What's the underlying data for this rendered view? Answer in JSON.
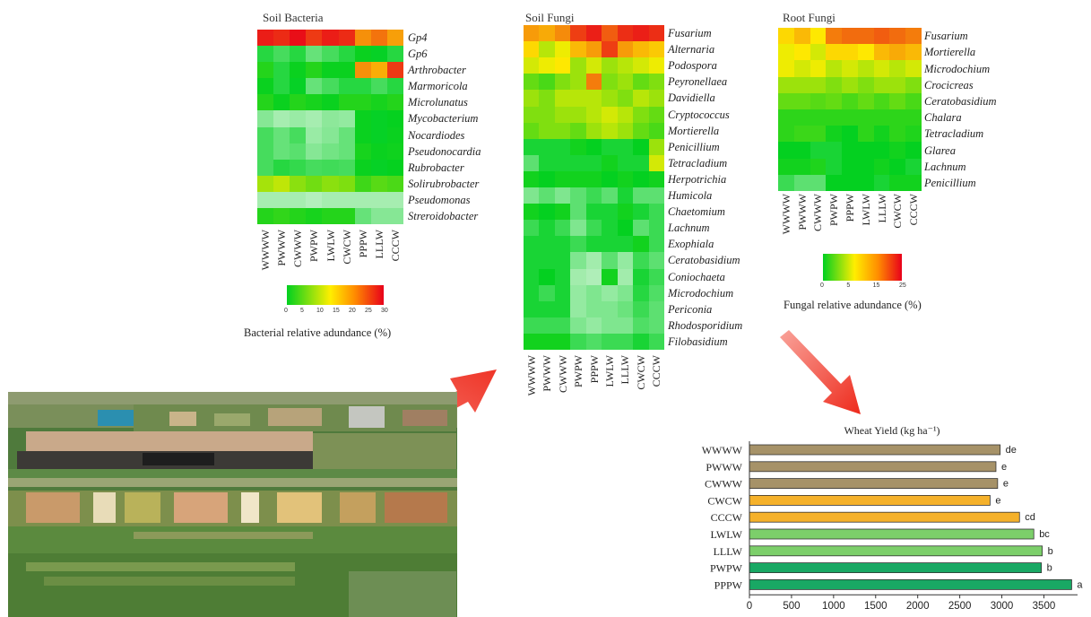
{
  "colors": {
    "heat_low": "#00d020",
    "heat_mid": "#ffee00",
    "heat_high": "#e8001a",
    "bar_brown": "#a69268",
    "bar_orange": "#f5b12a",
    "bar_lightgreen": "#7ccf6a",
    "bar_green": "#19a864",
    "arrow": "#f0463a"
  },
  "icons": {
    "arrow_left": "red-arrow-icon",
    "arrow_right": "red-arrow-icon"
  },
  "soil_bacteria": {
    "title": "Soil Bacteria",
    "rows": [
      "Gp4",
      "Gp6",
      "Arthrobacter",
      "Marmoricola",
      "Microlunatus",
      "Mycobacterium",
      "Nocardiodes",
      "Pseudonocardia",
      "Rubrobacter",
      "Solirubrobacter",
      "Pseudomonas",
      "Streroidobacter"
    ],
    "columns": [
      "WWWW",
      "PWWW",
      "CWWW",
      "PWPW",
      "LWLW",
      "CWCW",
      "PPPW",
      "LLLW",
      "CCCW"
    ],
    "values": [
      [
        28,
        27,
        29,
        26,
        28,
        27,
        20,
        22,
        19
      ],
      [
        3,
        2.5,
        3,
        2,
        2.5,
        3,
        4,
        3.5,
        3
      ],
      [
        5,
        3,
        4,
        5,
        4,
        4,
        20,
        18,
        26
      ],
      [
        4,
        3,
        3.5,
        2,
        2.5,
        3,
        3,
        2.5,
        3
      ],
      [
        5,
        4,
        5,
        4.5,
        4,
        5,
        5,
        4.5,
        5
      ],
      [
        1.5,
        1,
        1.2,
        1,
        1.4,
        1.3,
        4,
        3.5,
        3.8
      ],
      [
        2.5,
        2,
        2.5,
        1.2,
        1.5,
        2,
        4,
        3.5,
        4
      ],
      [
        2.5,
        2,
        2.2,
        1.5,
        1.8,
        2,
        4.5,
        4,
        4.2
      ],
      [
        2.5,
        3,
        2.8,
        2.5,
        2.6,
        2.5,
        4,
        3.5,
        3.8
      ],
      [
        10,
        11,
        9,
        8,
        9,
        8.5,
        6,
        7,
        6.5
      ],
      [
        1,
        1,
        1,
        0.8,
        1,
        1,
        1,
        1,
        1
      ],
      [
        5,
        5.5,
        5,
        4.5,
        5,
        5,
        2,
        1.5,
        1.5
      ]
    ],
    "legend_ticks": [
      "0",
      "5",
      "10",
      "15",
      "20",
      "25",
      "30"
    ],
    "legend_title": "Bacterial relative adundance (%)"
  },
  "soil_fungi": {
    "title": "Soil Fungi",
    "rows": [
      "Fusarium",
      "Alternaria",
      "Podospora",
      "Peyronellaea",
      "Davidiella",
      "Cryptococcus",
      "Mortierella",
      "Penicillium",
      "Tetracladium",
      "Herpotrichia",
      "Humicola",
      "Chaetomium",
      "Lachnum",
      "Exophiala",
      "Ceratobasidium",
      "Coniochaeta",
      "Microdochium",
      "Periconia",
      "Rhodosporidium",
      "Filobasidium"
    ],
    "columns": [
      "WWWW",
      "PWWW",
      "CWWW",
      "PWPW",
      "PPPW",
      "LWLW",
      "LLLW",
      "CWCW",
      "CCCW"
    ],
    "values": [
      [
        18,
        17,
        19,
        24,
        26,
        22,
        25,
        26,
        25
      ],
      [
        14,
        10,
        12,
        16,
        18,
        24,
        18,
        16,
        15
      ],
      [
        11,
        12,
        13,
        9,
        11,
        9,
        10,
        11,
        12
      ],
      [
        7,
        6,
        8,
        9,
        20,
        8,
        9,
        7,
        8
      ],
      [
        9,
        8,
        10,
        10,
        10,
        9,
        8,
        10,
        9
      ],
      [
        8,
        8,
        9,
        9,
        10,
        11,
        10,
        8,
        7
      ],
      [
        7,
        8,
        8,
        7,
        9,
        10,
        9,
        7,
        6
      ],
      [
        3,
        3,
        3,
        4,
        3.5,
        3,
        3,
        3.5,
        9
      ],
      [
        2,
        3,
        3,
        3,
        3,
        4,
        3,
        3,
        11
      ],
      [
        4,
        3.5,
        4,
        4,
        4,
        3.5,
        4,
        3.5,
        4
      ],
      [
        1.5,
        2,
        1.5,
        2,
        2.5,
        2,
        3,
        2,
        2
      ],
      [
        4,
        3.5,
        4,
        2,
        3,
        3,
        4,
        3,
        2.5
      ],
      [
        2.5,
        3,
        2.5,
        1.5,
        2.5,
        3,
        3.5,
        2,
        2.5
      ],
      [
        3,
        3,
        3,
        2.5,
        3,
        3,
        3,
        4,
        2.5
      ],
      [
        3,
        3,
        3,
        1.5,
        1,
        2,
        1.2,
        2.5,
        2
      ],
      [
        3,
        3.5,
        3,
        1,
        0.8,
        4,
        1,
        3,
        2.5
      ],
      [
        3,
        2.5,
        3,
        1.2,
        1.5,
        1.2,
        1.5,
        2.8,
        2.2
      ],
      [
        3,
        3,
        3,
        1.2,
        1.5,
        1.5,
        1.8,
        2.5,
        2
      ],
      [
        2.5,
        2.5,
        2.5,
        1.5,
        1.2,
        1.5,
        1.5,
        2.2,
        2
      ],
      [
        4,
        4,
        4,
        2.5,
        2.2,
        2.5,
        2.5,
        3,
        2.5
      ]
    ]
  },
  "root_fungi": {
    "title": "Root Fungi",
    "rows": [
      "Fusarium",
      "Mortierella",
      "Microdochium",
      "Crocicreas",
      "Ceratobasidium",
      "Chalara",
      "Tetracladium",
      "Glarea",
      "Lachnum",
      "Penicillium"
    ],
    "columns": [
      "WWWW",
      "PWWW",
      "CWWW",
      "PWPW",
      "PPPW",
      "LWLW",
      "LLLW",
      "CWCW",
      "CCCW"
    ],
    "values": [
      [
        14,
        16,
        13,
        20,
        21,
        21,
        22,
        21,
        20
      ],
      [
        12,
        13,
        11,
        14,
        14,
        13,
        16,
        17,
        16
      ],
      [
        12,
        11,
        12,
        10,
        11,
        10,
        11,
        10,
        11
      ],
      [
        9,
        9,
        9,
        8,
        9,
        8,
        9,
        9,
        8
      ],
      [
        7,
        7,
        6.5,
        7,
        6,
        7,
        6,
        7,
        6
      ],
      [
        5,
        5,
        5,
        5,
        5,
        5,
        5,
        5,
        5
      ],
      [
        5,
        5.5,
        5.5,
        4,
        3.5,
        5,
        4,
        5,
        4.5
      ],
      [
        3.5,
        3.5,
        3,
        3,
        3.5,
        3.5,
        3.5,
        4,
        3.5
      ],
      [
        4,
        4,
        4.5,
        3,
        3.5,
        3.5,
        4,
        3.5,
        3
      ],
      [
        2.5,
        2,
        2,
        3.5,
        3.5,
        3.5,
        3,
        4,
        4
      ]
    ],
    "legend_ticks": [
      "0",
      "5",
      "15",
      "25"
    ],
    "legend_title": "Fungal relative adundance (%)"
  },
  "chart_data": {
    "type": "bar",
    "orientation": "horizontal",
    "title": "Wheat Yield (kg ha⁻¹)",
    "categories": [
      "WWWW",
      "PWWW",
      "CWWW",
      "CWCW",
      "CCCW",
      "LWLW",
      "LLLW",
      "PWPW",
      "PPPW"
    ],
    "values": [
      2980,
      2930,
      2950,
      2860,
      3210,
      3380,
      3480,
      3470,
      3830
    ],
    "letters": [
      "de",
      "e",
      "e",
      "e",
      "cd",
      "bc",
      "b",
      "b",
      "a"
    ],
    "groups": [
      "brown",
      "brown",
      "brown",
      "orange",
      "orange",
      "lightgreen",
      "lightgreen",
      "green",
      "green"
    ],
    "x_ticks": [
      "0",
      "500",
      "1000",
      "1500",
      "2000",
      "2500",
      "3000",
      "3500"
    ],
    "xlim": [
      0,
      3900
    ]
  },
  "photo": {
    "description_icon": "aerial-field-photo-icon"
  }
}
